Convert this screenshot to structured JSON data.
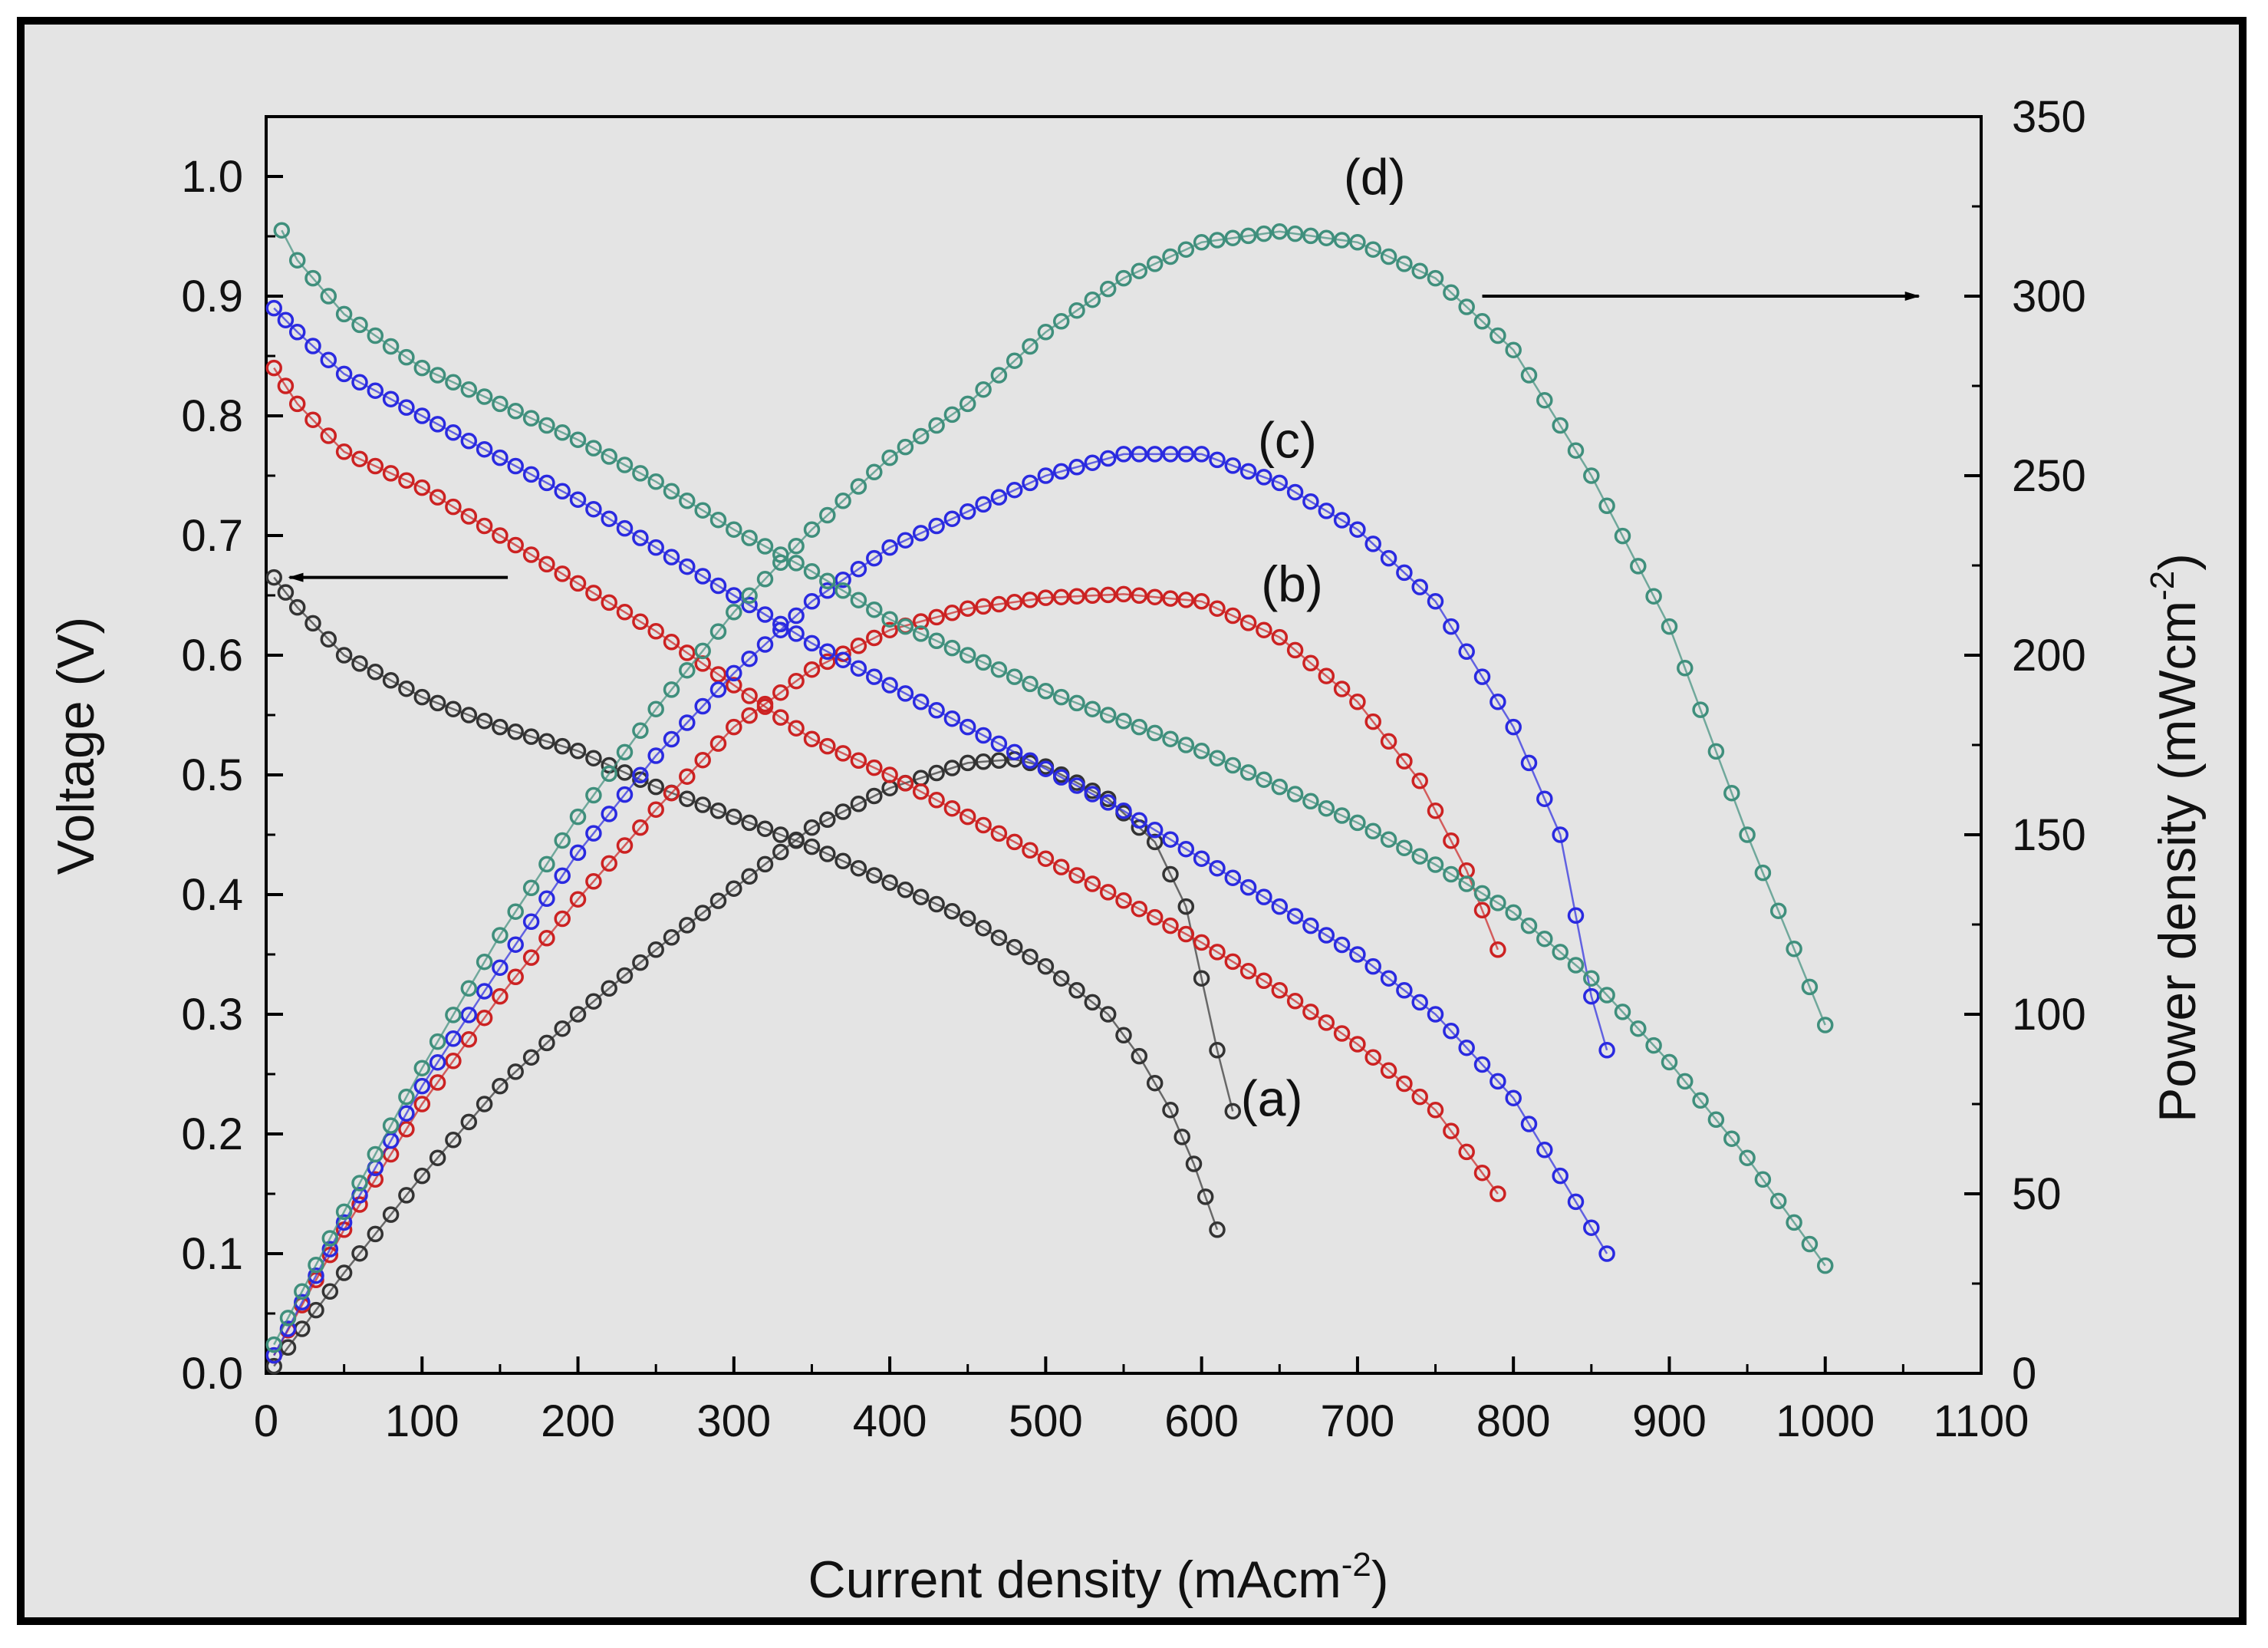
{
  "chart_data": {
    "type": "scatter",
    "title": "",
    "xlabel": "Current density (mAcm",
    "xlabel_sup": "-2",
    "xlabel_tail": ")",
    "ylabel": "Voltage (V)",
    "y2label": "Power density (mWcm",
    "y2label_sup": "-2",
    "y2label_tail": ")",
    "xlim": [
      0,
      1100
    ],
    "ylim": [
      0,
      1.05
    ],
    "y2lim": [
      0,
      350
    ],
    "xticks": [
      0,
      100,
      200,
      300,
      400,
      500,
      600,
      700,
      800,
      900,
      1000,
      1100
    ],
    "xtick_labels": [
      "0",
      "100",
      "200",
      "300",
      "400",
      "500",
      "600",
      "700",
      "800",
      "900",
      "1000",
      "1100"
    ],
    "yticks": [
      0.0,
      0.1,
      0.2,
      0.3,
      0.4,
      0.5,
      0.6,
      0.7,
      0.8,
      0.9,
      1.0
    ],
    "ytick_labels": [
      "0.0",
      "0.1",
      "0.2",
      "0.3",
      "0.4",
      "0.5",
      "0.6",
      "0.7",
      "0.8",
      "0.9",
      "1.0"
    ],
    "y2ticks": [
      0,
      50,
      100,
      150,
      200,
      250,
      300,
      350
    ],
    "y2tick_labels": [
      "0",
      "50",
      "100",
      "150",
      "200",
      "250",
      "300",
      "350"
    ],
    "grid": false,
    "legend": "none",
    "annotations": [
      {
        "text": "(a)",
        "series": "a",
        "x": 645,
        "y": 0.215
      },
      {
        "text": "(b)",
        "series": "b",
        "x": 658,
        "y": 0.645
      },
      {
        "text": "(c)",
        "series": "c",
        "x": 655,
        "y": 0.765
      },
      {
        "text": "(d)",
        "series": "d",
        "x": 711,
        "y": 0.985
      }
    ],
    "arrows": [
      {
        "from": [
          155,
          0.665
        ],
        "to": [
          15,
          0.665
        ],
        "meaning": "voltage curves use left axis"
      },
      {
        "from": [
          780,
          0.9
        ],
        "to": [
          1060,
          0.9
        ],
        "meaning": "power curves use right axis"
      }
    ],
    "series": [
      {
        "name": "a",
        "color": "#333333",
        "voltage": {
          "x": [
            5,
            20,
            50,
            100,
            150,
            200,
            250,
            300,
            350,
            400,
            450,
            500,
            520,
            540,
            560,
            580,
            595,
            610
          ],
          "y": [
            0.665,
            0.64,
            0.6,
            0.565,
            0.54,
            0.52,
            0.49,
            0.465,
            0.44,
            0.41,
            0.38,
            0.34,
            0.32,
            0.3,
            0.265,
            0.22,
            0.175,
            0.12
          ]
        },
        "power": {
          "x": [
            5,
            50,
            100,
            150,
            200,
            250,
            300,
            350,
            400,
            450,
            480,
            500,
            540,
            570,
            590,
            600,
            610,
            620
          ],
          "y": [
            2,
            28,
            55,
            80,
            100,
            118,
            135,
            152,
            163,
            170,
            171,
            169,
            160,
            148,
            130,
            110,
            90,
            73
          ]
        }
      },
      {
        "name": "b",
        "color": "#cc2222",
        "voltage": {
          "x": [
            5,
            20,
            50,
            100,
            150,
            200,
            250,
            300,
            350,
            400,
            450,
            500,
            550,
            600,
            650,
            700,
            750,
            790
          ],
          "y": [
            0.84,
            0.81,
            0.77,
            0.74,
            0.7,
            0.66,
            0.62,
            0.575,
            0.53,
            0.5,
            0.465,
            0.43,
            0.395,
            0.36,
            0.32,
            0.275,
            0.22,
            0.15
          ]
        },
        "power": {
          "x": [
            5,
            50,
            100,
            150,
            200,
            250,
            300,
            350,
            400,
            450,
            500,
            550,
            600,
            650,
            700,
            740,
            770,
            790
          ],
          "y": [
            5,
            40,
            75,
            105,
            132,
            157,
            180,
            196,
            207,
            213,
            216,
            217,
            215,
            205,
            187,
            165,
            140,
            118
          ]
        }
      },
      {
        "name": "c",
        "color": "#2a2ae0",
        "voltage": {
          "x": [
            5,
            20,
            50,
            100,
            150,
            200,
            250,
            300,
            350,
            400,
            450,
            500,
            550,
            600,
            650,
            700,
            750,
            800,
            860
          ],
          "y": [
            0.89,
            0.87,
            0.835,
            0.8,
            0.765,
            0.73,
            0.69,
            0.65,
            0.61,
            0.575,
            0.54,
            0.505,
            0.47,
            0.43,
            0.39,
            0.35,
            0.3,
            0.23,
            0.1
          ]
        },
        "power": {
          "x": [
            5,
            50,
            100,
            150,
            200,
            250,
            300,
            350,
            400,
            450,
            500,
            550,
            600,
            650,
            700,
            750,
            800,
            830,
            850,
            860
          ],
          "y": [
            5,
            42,
            80,
            113,
            145,
            172,
            195,
            215,
            230,
            240,
            250,
            256,
            256,
            248,
            235,
            215,
            180,
            150,
            105,
            90
          ]
        }
      },
      {
        "name": "d",
        "color": "#3f8f7c",
        "voltage": {
          "x": [
            10,
            20,
            50,
            100,
            150,
            200,
            250,
            300,
            350,
            400,
            450,
            500,
            550,
            600,
            650,
            700,
            750,
            800,
            850,
            900,
            950,
            1000
          ],
          "y": [
            0.955,
            0.93,
            0.885,
            0.84,
            0.81,
            0.78,
            0.745,
            0.705,
            0.67,
            0.63,
            0.6,
            0.57,
            0.545,
            0.52,
            0.49,
            0.46,
            0.425,
            0.385,
            0.33,
            0.26,
            0.18,
            0.09
          ]
        },
        "power": {
          "x": [
            5,
            50,
            100,
            150,
            200,
            250,
            300,
            350,
            400,
            450,
            500,
            550,
            600,
            650,
            700,
            750,
            800,
            850,
            900,
            950,
            1000
          ],
          "y": [
            8,
            45,
            85,
            122,
            155,
            185,
            212,
            235,
            255,
            270,
            290,
            305,
            315,
            318,
            315,
            305,
            285,
            250,
            208,
            150,
            97
          ]
        }
      }
    ]
  }
}
